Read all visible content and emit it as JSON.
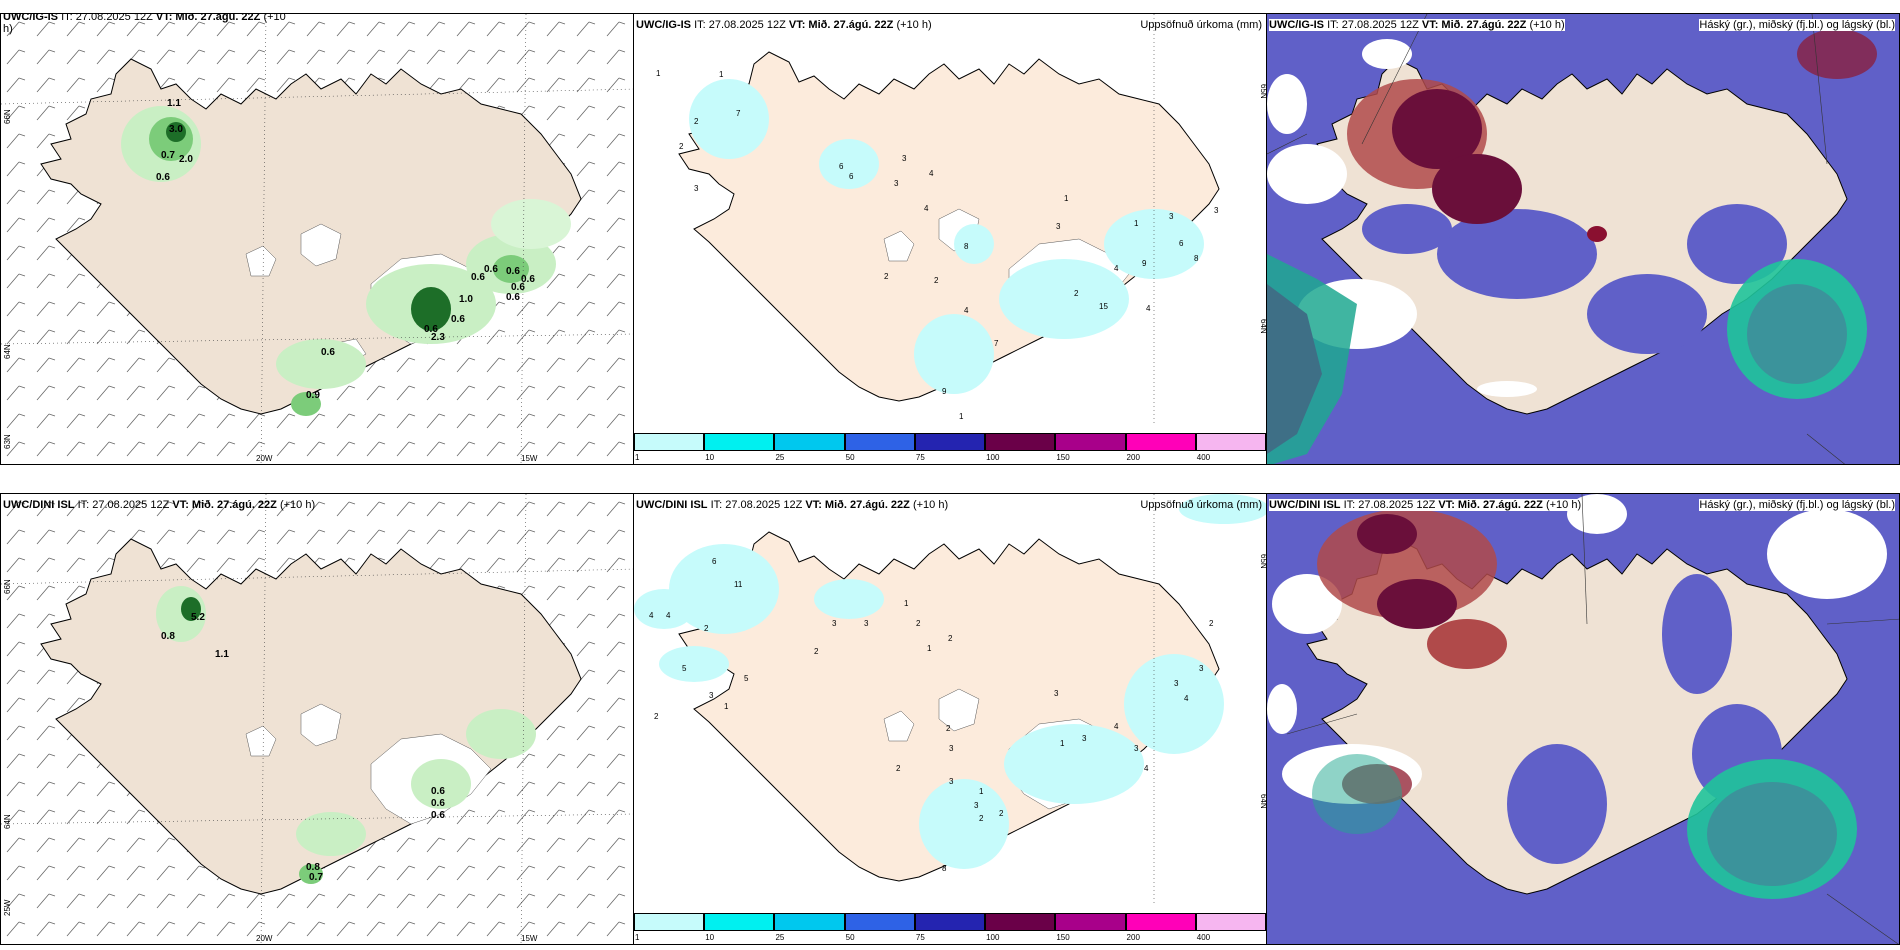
{
  "panels": {
    "p1": {
      "model": "UWC/IG-IS",
      "it": "IT: 27.08.2025 12Z",
      "vt_label": "VT:",
      "vt": "Mið. 27.ágú. 22Z",
      "lead_a": "(+10",
      "lead_b": "h)",
      "lat_a": "66N",
      "lat_b": "64N",
      "lat_c": "63N",
      "lon_a": "20W",
      "lon_b": "15W"
    },
    "p2": {
      "model": "UWC/IG-IS",
      "it": "IT: 27.08.2025 12Z",
      "vt_label": "VT:",
      "vt": "Mið. 27.ágú. 22Z",
      "lead": "(+10 h)",
      "title_right": "Uppsöfnuð úrkoma (mm)",
      "lat_a": "65N",
      "lat_b": "64N"
    },
    "p3": {
      "model": "UWC/IG-IS",
      "it": "IT: 27.08.2025 12Z",
      "vt_label": "VT:",
      "vt": "Mið. 27.ágú. 22Z",
      "lead": "(+10 h)",
      "title_right": "Háský (gr.), miðský (fj.bl.) og lágský (bl.)"
    },
    "p4": {
      "model": "UWC/DINI ISL",
      "it": "IT: 27.08.2025 12Z",
      "vt_label": "VT:",
      "vt": "Mið. 27.ágú. 22Z",
      "lead": "(+10 h)",
      "lat_a": "66N",
      "lat_b": "64N",
      "lat_c": "25W",
      "lon_a": "20W",
      "lon_b": "15W"
    },
    "p5": {
      "model": "UWC/DINI ISL",
      "it": "IT: 27.08.2025 12Z",
      "vt_label": "VT:",
      "vt": "Mið. 27.ágú. 22Z",
      "lead": "(+10 h)",
      "title_right": "Uppsöfnuð úrkoma (mm)",
      "lat_a": "65N",
      "lat_b": "64N"
    },
    "p6": {
      "model": "UWC/DINI ISL",
      "it": "IT: 27.08.2025 12Z",
      "vt_label": "VT:",
      "vt": "Mið. 27.ágú. 22Z",
      "lead": "(+10 h)",
      "title_right": "Háský (gr.), miðský (fj.bl.) og lágský (bl.)"
    }
  },
  "colorbar": {
    "ticks": [
      "1",
      "10",
      "25",
      "50",
      "75",
      "100",
      "150",
      "200",
      "400"
    ],
    "colors": [
      "#c6fbfb",
      "#00f0f0",
      "#00c8ee",
      "#2e62e6",
      "#2424b0",
      "#6a0048",
      "#a8008a",
      "#ff00b8",
      "#f6b6f0"
    ]
  },
  "p1_labels": [
    "1.1",
    "3.0",
    "0.7",
    "2.0",
    "0.6",
    "0.6",
    "0.6",
    "0.6",
    "0.6",
    "1.0",
    "0.6",
    "0.6",
    "0.6",
    "0.6",
    "2.3",
    "0.9",
    "0.6"
  ],
  "p2_labels": [
    "1",
    "1",
    "7",
    "2",
    "2",
    "3",
    "6",
    "6",
    "3",
    "3",
    "4",
    "4",
    "1",
    "3",
    "8",
    "2",
    "2",
    "4",
    "7",
    "1",
    "6",
    "3",
    "9",
    "8",
    "4",
    "3",
    "2",
    "15",
    "9",
    "1",
    "4"
  ],
  "p4_labels": [
    "5.2",
    "0.8",
    "1.1",
    "0.6",
    "0.6",
    "0.6",
    "0.8",
    "0.7"
  ],
  "p5_labels": [
    "6",
    "11",
    "4",
    "4",
    "2",
    "5",
    "2",
    "5",
    "3",
    "3",
    "2",
    "1",
    "1",
    "2",
    "1",
    "2",
    "3",
    "3",
    "2",
    "3",
    "2",
    "3",
    "1",
    "3",
    "2",
    "2",
    "3",
    "4",
    "3",
    "3",
    "4",
    "3",
    "4",
    "8",
    "1",
    "2"
  ]
}
